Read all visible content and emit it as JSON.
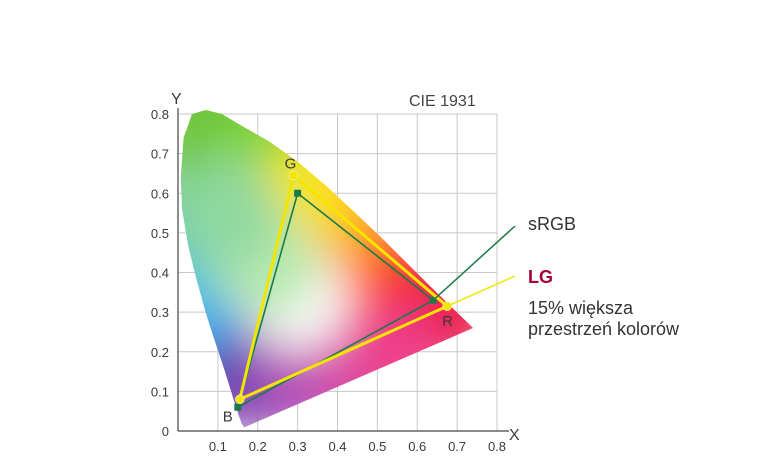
{
  "chart_data": {
    "type": "scatter",
    "title": "CIE 1931",
    "xlabel": "X",
    "ylabel": "Y",
    "xlim": [
      0,
      0.8
    ],
    "ylim": [
      0,
      0.8
    ],
    "x_ticks": [
      "0",
      "0.1",
      "0.2",
      "0.3",
      "0.4",
      "0.5",
      "0.6",
      "0.7",
      "0.8"
    ],
    "y_ticks": [
      "0",
      "0.1",
      "0.2",
      "0.3",
      "0.4",
      "0.5",
      "0.6",
      "0.7",
      "0.8"
    ],
    "grid": true,
    "series": [
      {
        "name": "sRGB",
        "color": "#1a7a48",
        "points": [
          {
            "x": 0.64,
            "y": 0.33
          },
          {
            "x": 0.3,
            "y": 0.6
          },
          {
            "x": 0.15,
            "y": 0.06
          }
        ]
      },
      {
        "name": "LG",
        "color": "#f2e600",
        "points": [
          {
            "label": "R",
            "x": 0.675,
            "y": 0.315
          },
          {
            "label": "G",
            "x": 0.29,
            "y": 0.645
          },
          {
            "label": "B",
            "x": 0.155,
            "y": 0.08
          }
        ]
      }
    ],
    "annotations": {
      "srgb": "sRGB",
      "lg": "LG",
      "lg_line1": "15% większa",
      "lg_line2": "przestrzeń kolorów"
    }
  },
  "colors": {
    "lg": "#a50034",
    "srgb_line": "#1a7a48",
    "lg_line": "#f2e600",
    "grid": "#c8c8c8"
  }
}
